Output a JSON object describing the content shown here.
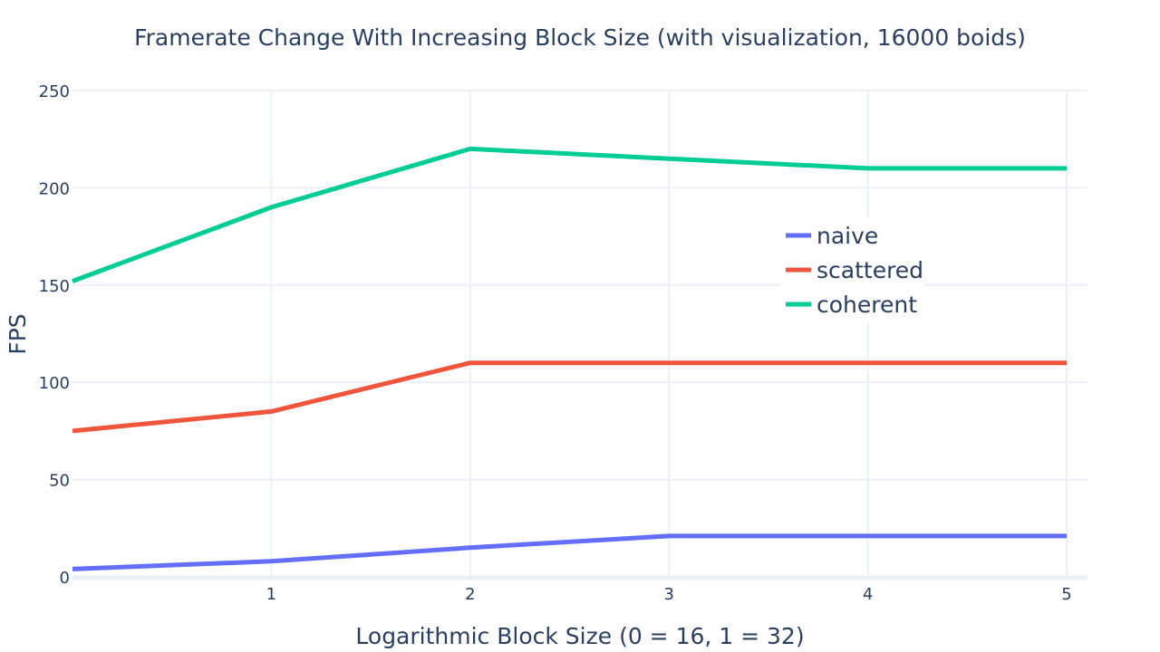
{
  "chart_data": {
    "type": "line",
    "title": "Framerate Change With Increasing Block Size (with visualization, 16000 boids)",
    "xlabel": "Logarithmic Block Size (0 = 16, 1 = 32)",
    "ylabel": "FPS",
    "x": [
      0,
      1,
      2,
      3,
      4,
      5
    ],
    "xticks": [
      1,
      2,
      3,
      4,
      5
    ],
    "yticks": [
      0,
      50,
      100,
      150,
      200,
      250
    ],
    "xlim": [
      0,
      5.1
    ],
    "ylim": [
      0,
      250
    ],
    "grid": true,
    "legend_position": "upper-right-inside",
    "series": [
      {
        "name": "naive",
        "color": "#636efa",
        "values": [
          4,
          8,
          15,
          21,
          21,
          21
        ]
      },
      {
        "name": "scattered",
        "color": "#ef553b",
        "values": [
          75,
          85,
          110,
          110,
          110,
          110
        ]
      },
      {
        "name": "coherent",
        "color": "#00cc96",
        "values": [
          152,
          190,
          220,
          215,
          210,
          210
        ]
      }
    ]
  },
  "colors": {
    "grid": "#ebf0f8",
    "text": "#2a3f5f",
    "background": "#ffffff"
  }
}
